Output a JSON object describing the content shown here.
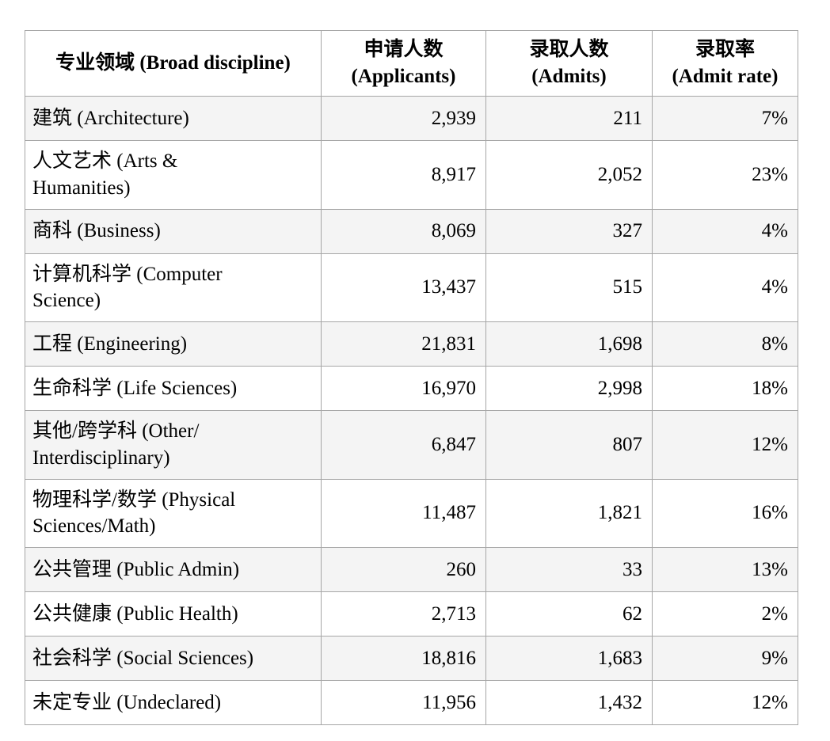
{
  "colors": {
    "row_stripe": "#f4f4f4",
    "row_plain": "#ffffff",
    "grid_border": "#a6a6a6",
    "text": "#000000"
  },
  "table": {
    "columns": [
      {
        "label": "专业领域 (Broad discipline)"
      },
      {
        "label": "申请人数\n(Applicants)"
      },
      {
        "label": "录取人数\n(Admits)"
      },
      {
        "label": "录取率\n(Admit rate)"
      }
    ],
    "rows": [
      {
        "discipline": "建筑 (Architecture)",
        "applicants": "2,939",
        "admits": "211",
        "admit_rate": "7%",
        "lines": 1
      },
      {
        "discipline": "人文艺术 (Arts &\nHumanities)",
        "applicants": "8,917",
        "admits": "2,052",
        "admit_rate": "23%",
        "lines": 2
      },
      {
        "discipline": "商科 (Business)",
        "applicants": "8,069",
        "admits": "327",
        "admit_rate": "4%",
        "lines": 1
      },
      {
        "discipline": "计算机科学 (Computer\nScience)",
        "applicants": "13,437",
        "admits": "515",
        "admit_rate": "4%",
        "lines": 2
      },
      {
        "discipline": "工程 (Engineering)",
        "applicants": "21,831",
        "admits": "1,698",
        "admit_rate": "8%",
        "lines": 1
      },
      {
        "discipline": "生命科学 (Life Sciences)",
        "applicants": "16,970",
        "admits": "2,998",
        "admit_rate": "18%",
        "lines": 1
      },
      {
        "discipline": "其他/跨学科 (Other/\nInterdisciplinary)",
        "applicants": "6,847",
        "admits": "807",
        "admit_rate": "12%",
        "lines": 2
      },
      {
        "discipline": "物理科学/数学 (Physical\nSciences/Math)",
        "applicants": "11,487",
        "admits": "1,821",
        "admit_rate": "16%",
        "lines": 2
      },
      {
        "discipline": "公共管理 (Public Admin)",
        "applicants": "260",
        "admits": "33",
        "admit_rate": "13%",
        "lines": 1
      },
      {
        "discipline": "公共健康 (Public Health)",
        "applicants": "2,713",
        "admits": "62",
        "admit_rate": "2%",
        "lines": 1
      },
      {
        "discipline": "社会科学 (Social Sciences)",
        "applicants": "18,816",
        "admits": "1,683",
        "admit_rate": "9%",
        "lines": 1
      },
      {
        "discipline": "未定专业 (Undeclared)",
        "applicants": "11,956",
        "admits": "1,432",
        "admit_rate": "12%",
        "lines": 1
      }
    ]
  }
}
